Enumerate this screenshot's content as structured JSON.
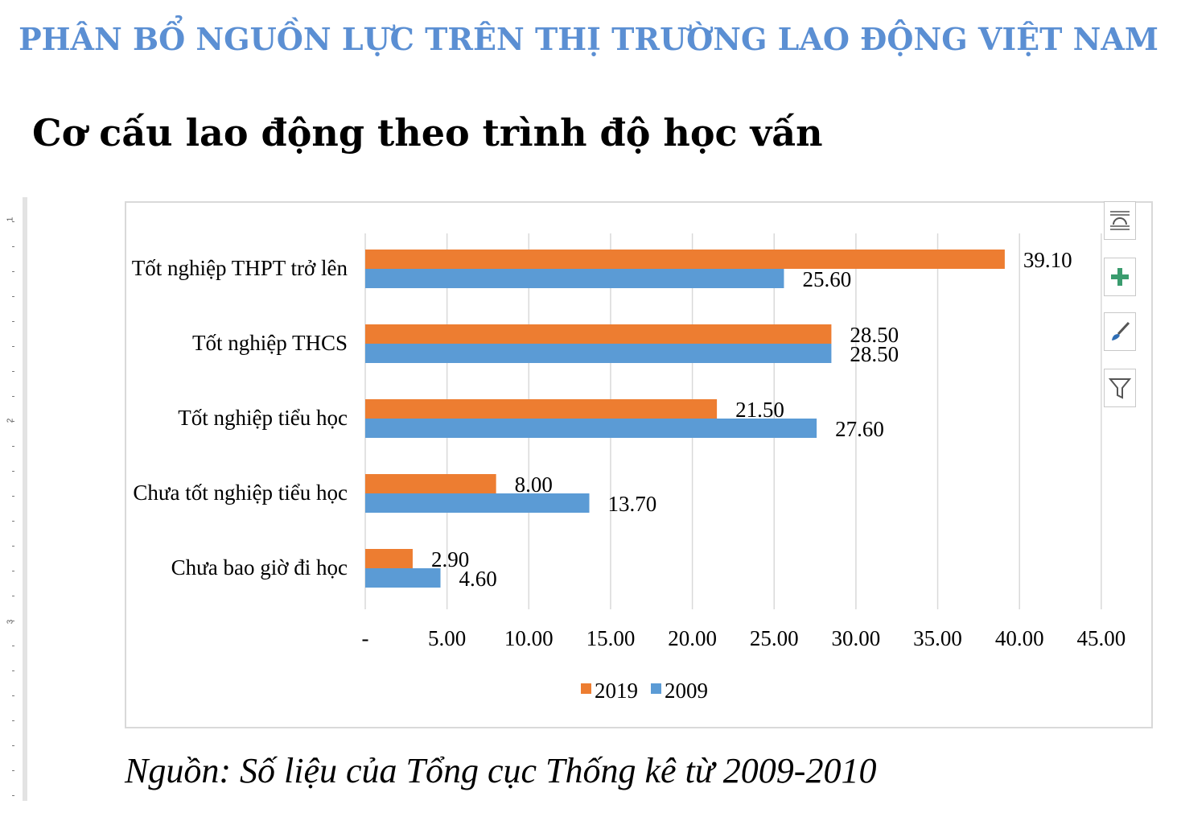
{
  "page": {
    "heading": "PHÂN BỔ NGUỒN LỰC TRÊN THỊ TRƯỜNG LAO ĐỘNG VIỆT NAM",
    "subheading": "Cơ cấu lao động theo trình độ học vấn",
    "source": "Nguồn: Số liệu của Tổng cục Thống kê từ 2009-2010",
    "heading_color": "#5b8fd3"
  },
  "ruler": {
    "numbers": [
      "1",
      "2",
      "3"
    ]
  },
  "tools": [
    {
      "name": "layout-options-icon",
      "glyph": "≡"
    },
    {
      "name": "chart-elements-icon",
      "glyph": "+"
    },
    {
      "name": "chart-styles-icon",
      "glyph": "🖌"
    },
    {
      "name": "chart-filters-icon",
      "glyph": "▼"
    }
  ],
  "chart_data": {
    "type": "bar",
    "orientation": "horizontal",
    "categories": [
      "Tốt nghiệp THPT trở lên",
      "Tốt nghiệp THCS",
      "Tốt nghiệp tiểu học",
      "Chưa tốt nghiệp tiểu học",
      "Chưa bao giờ đi học"
    ],
    "series": [
      {
        "name": "2019",
        "color": "#ed7d31",
        "values": [
          39.1,
          28.5,
          21.5,
          8.0,
          2.9
        ],
        "labels": [
          "39.10",
          "28.50",
          "21.50",
          "8.00",
          "2.90"
        ]
      },
      {
        "name": "2009",
        "color": "#5b9bd5",
        "values": [
          25.6,
          28.5,
          27.6,
          13.7,
          4.6
        ],
        "labels": [
          "25.60",
          "28.50",
          "27.60",
          "13.70",
          "4.60"
        ]
      }
    ],
    "xlim": [
      0,
      45
    ],
    "xticks": [
      0,
      5,
      10,
      15,
      20,
      25,
      30,
      35,
      40,
      45
    ],
    "xtick_labels": [
      "-",
      "5.00",
      "10.00",
      "15.00",
      "20.00",
      "25.00",
      "30.00",
      "35.00",
      "40.00",
      "45.00"
    ],
    "grid": true,
    "legend_position": "bottom"
  }
}
